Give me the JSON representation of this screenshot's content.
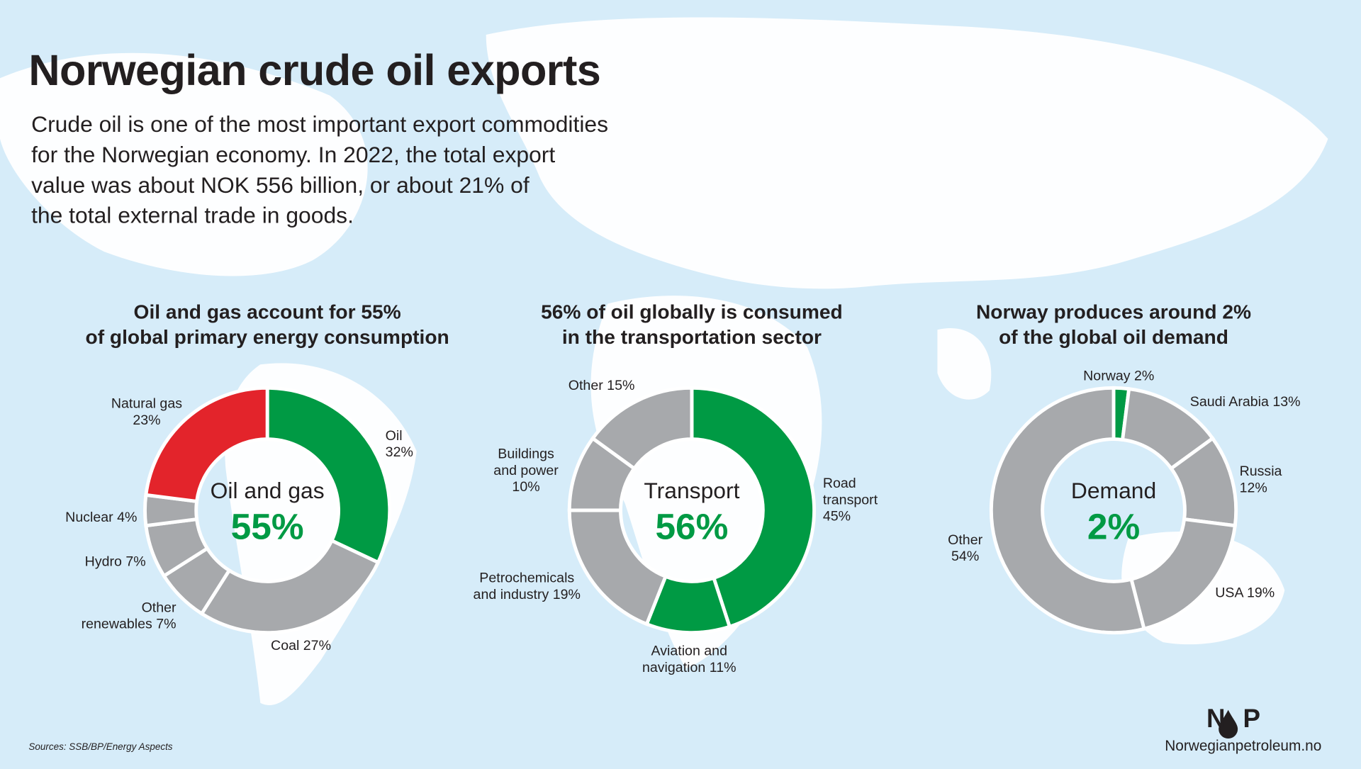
{
  "title": "Norwegian crude oil exports",
  "description": [
    "Crude oil is one of the most important export commodities",
    "for the Norwegian economy. In 2022, the total export",
    "value was about NOK 556 billion, or about 21% of",
    "the total external trade in goods."
  ],
  "source": "Sources: SSB/BP/Energy Aspects",
  "logo_letters": [
    "N",
    "P"
  ],
  "brand": "Norwegianpetroleum.no",
  "chart_data": [
    {
      "type": "pie",
      "title": [
        "Oil and gas account for 55%",
        "of global primary energy consumption"
      ],
      "center_label": "Oil and gas",
      "highlight": {
        "value": 55,
        "label": "55%"
      },
      "categories": [
        "Oil",
        "Coal",
        "Other renewables",
        "Hydro",
        "Nuclear",
        "Natural gas"
      ],
      "values": [
        32,
        27,
        7,
        7,
        4,
        23
      ],
      "value_labels": [
        "32%",
        "27%",
        "7%",
        "7%",
        "4%",
        "23%"
      ],
      "colors": [
        "#009a44",
        "#a7a9ac",
        "#a7a9ac",
        "#a7a9ac",
        "#a7a9ac",
        "#e3242b"
      ]
    },
    {
      "type": "pie",
      "title": [
        "56% of oil globally is consumed",
        "in the transportation sector"
      ],
      "center_label": "Transport",
      "highlight": {
        "value": 56,
        "label": "56%"
      },
      "categories": [
        "Road transport",
        "Aviation and navigation",
        "Petrochemicals and industry",
        "Buildings and power",
        "Other"
      ],
      "values": [
        45,
        11,
        19,
        10,
        15
      ],
      "value_labels": [
        "45%",
        "11%",
        "19%",
        "10%",
        "15%"
      ],
      "colors": [
        "#009a44",
        "#009a44",
        "#a7a9ac",
        "#a7a9ac",
        "#a7a9ac"
      ]
    },
    {
      "type": "pie",
      "title": [
        "Norway produces around 2%",
        "of the global oil demand"
      ],
      "center_label": "Demand",
      "highlight": {
        "value": 2,
        "label": "2%"
      },
      "categories": [
        "Norway",
        "Saudi Arabia",
        "Russia",
        "USA",
        "Other"
      ],
      "values": [
        2,
        13,
        12,
        19,
        54
      ],
      "value_labels": [
        "2%",
        "13%",
        "12%",
        "19%",
        "54%"
      ],
      "colors": [
        "#009a44",
        "#a7a9ac",
        "#a7a9ac",
        "#a7a9ac",
        "#a7a9ac"
      ]
    }
  ]
}
